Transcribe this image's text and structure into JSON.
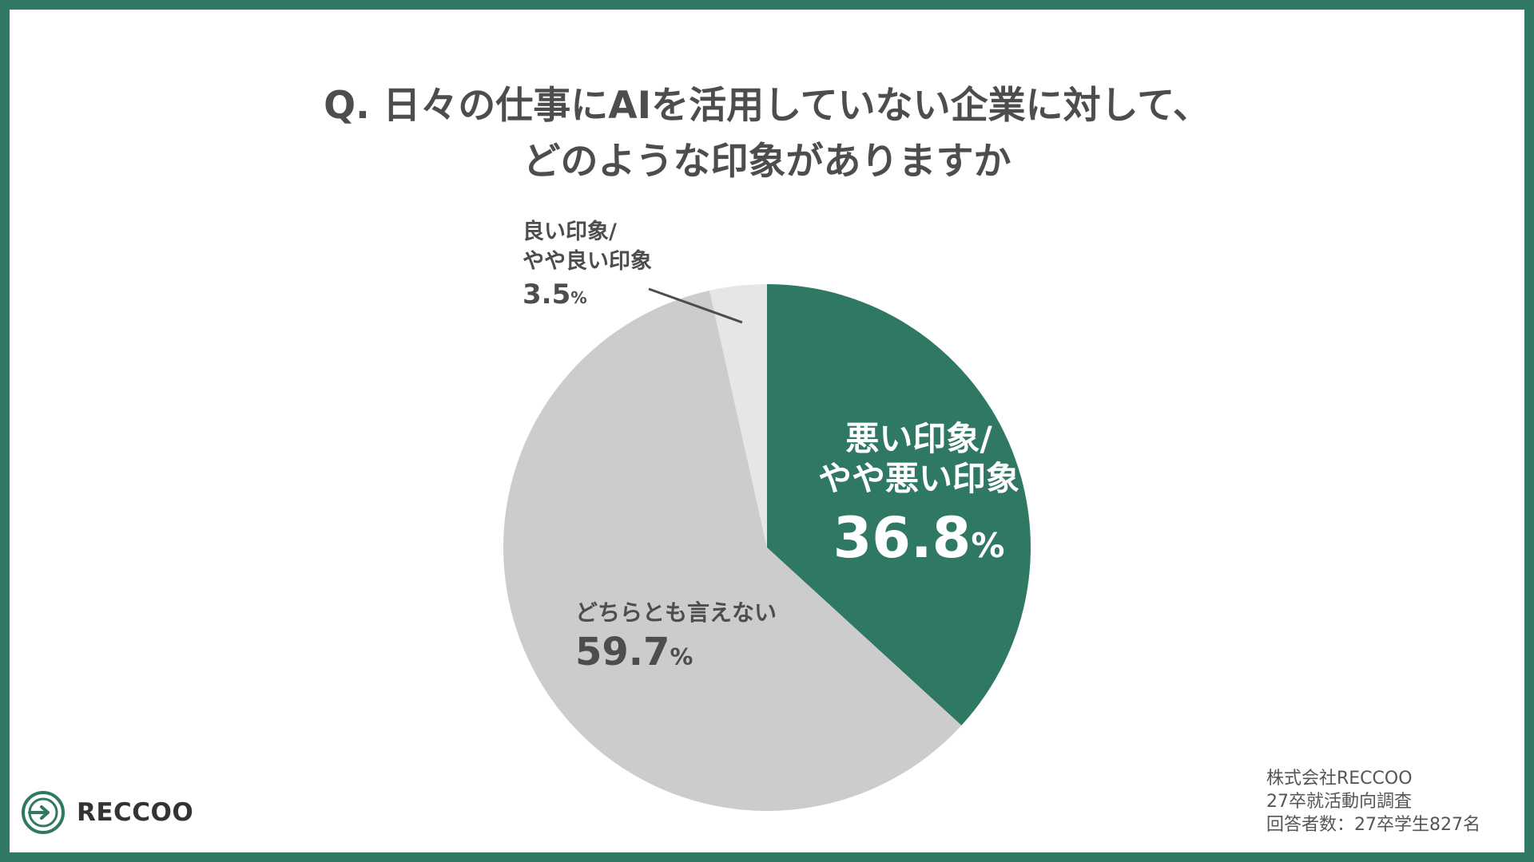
{
  "title": {
    "line1": "Q. 日々の仕事にAIを活用していない企業に対して、",
    "line2": "どのような印象がありますか"
  },
  "colors": {
    "frame": "#2e7864",
    "slice_bad": "#2e7864",
    "slice_neutral": "#cccccc",
    "slice_good": "#e6e6e6",
    "text": "#4d4d4d"
  },
  "chart_data": {
    "type": "pie",
    "title": "Q. 日々の仕事にAIを活用していない企業に対して、どのような印象がありますか",
    "start": "12 o'clock, clockwise",
    "unit": "%",
    "slices": [
      {
        "label": "悪い印象/\nやや悪い印象",
        "value": 36.8,
        "color": "#2e7864"
      },
      {
        "label": "どちらとも言えない",
        "value": 59.7,
        "color": "#cccccc"
      },
      {
        "label": "良い印象/\nやや良い印象",
        "value": 3.5,
        "color": "#e6e6e6"
      }
    ],
    "value_labels": [
      "36.8",
      "59.7",
      "3.5"
    ]
  },
  "source": {
    "line1": "株式会社RECCOO",
    "line2": "27卒就活動向調査",
    "line3": "回答者数：27卒学生827名"
  },
  "logo": {
    "text": "RECCOO",
    "icon": "reccoo-logo-icon"
  }
}
